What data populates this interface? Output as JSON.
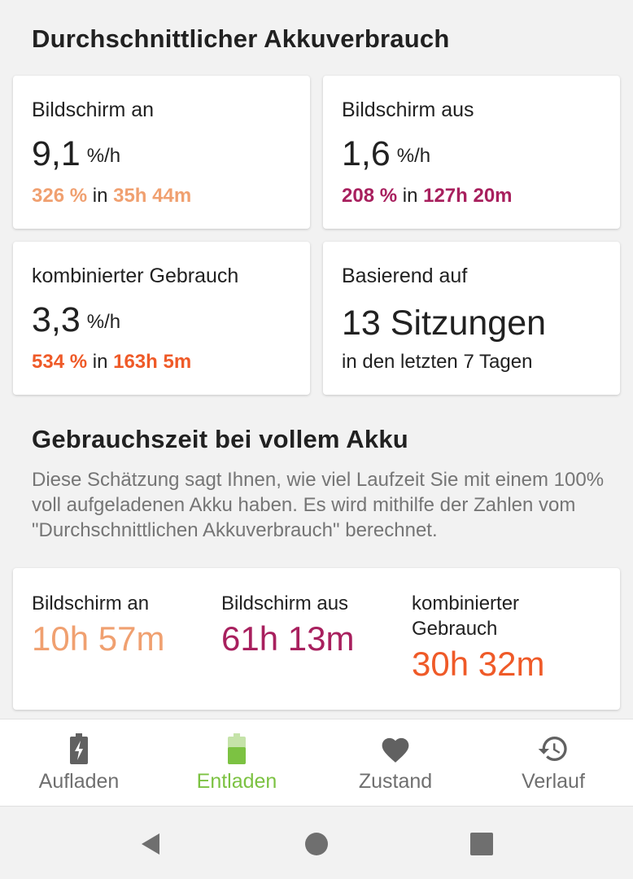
{
  "avg_section": {
    "title": "Durchschnittlicher Akkuverbrauch"
  },
  "cards": {
    "screen_on": {
      "label": "Bildschirm an",
      "rate": "9,1",
      "unit": "%/h",
      "percent": "326 %",
      "in": "in",
      "time": "35h 44m"
    },
    "screen_off": {
      "label": "Bildschirm aus",
      "rate": "1,6",
      "unit": "%/h",
      "percent": "208 %",
      "in": "in",
      "time": "127h 20m"
    },
    "combined": {
      "label": "kombinierter Gebrauch",
      "rate": "3,3",
      "unit": "%/h",
      "percent": "534 %",
      "in": "in",
      "time": "163h 5m"
    },
    "based_on": {
      "label": "Basierend auf",
      "value": "13 Sitzungen",
      "sub": "in den letzten 7 Tagen"
    }
  },
  "full_section": {
    "title": "Gebrauchszeit bei vollem Akku",
    "description": "Diese Schätzung sagt Ihnen, wie viel Laufzeit Sie mit einem 100% voll aufgeladenen Akku haben. Es wird mithilfe der Zahlen vom \"Durchschnittlichen Akkuverbrauch\" berechnet."
  },
  "estimates": {
    "screen_on": {
      "label": "Bildschirm an",
      "value": "10h 57m"
    },
    "screen_off": {
      "label": "Bildschirm aus",
      "value": "61h 13m"
    },
    "combined": {
      "label": "kombinierter Gebrauch",
      "value": "30h 32m"
    }
  },
  "bottom_nav": {
    "items": [
      {
        "label": "Aufladen",
        "icon": "battery-charging-icon"
      },
      {
        "label": "Entladen",
        "icon": "battery-discharging-icon",
        "active": true
      },
      {
        "label": "Zustand",
        "icon": "heart-icon"
      },
      {
        "label": "Verlauf",
        "icon": "history-icon"
      }
    ]
  },
  "colors": {
    "screen_on": "#f0a070",
    "screen_off": "#a8205e",
    "combined": "#ef5a28",
    "active": "#7cc242"
  }
}
